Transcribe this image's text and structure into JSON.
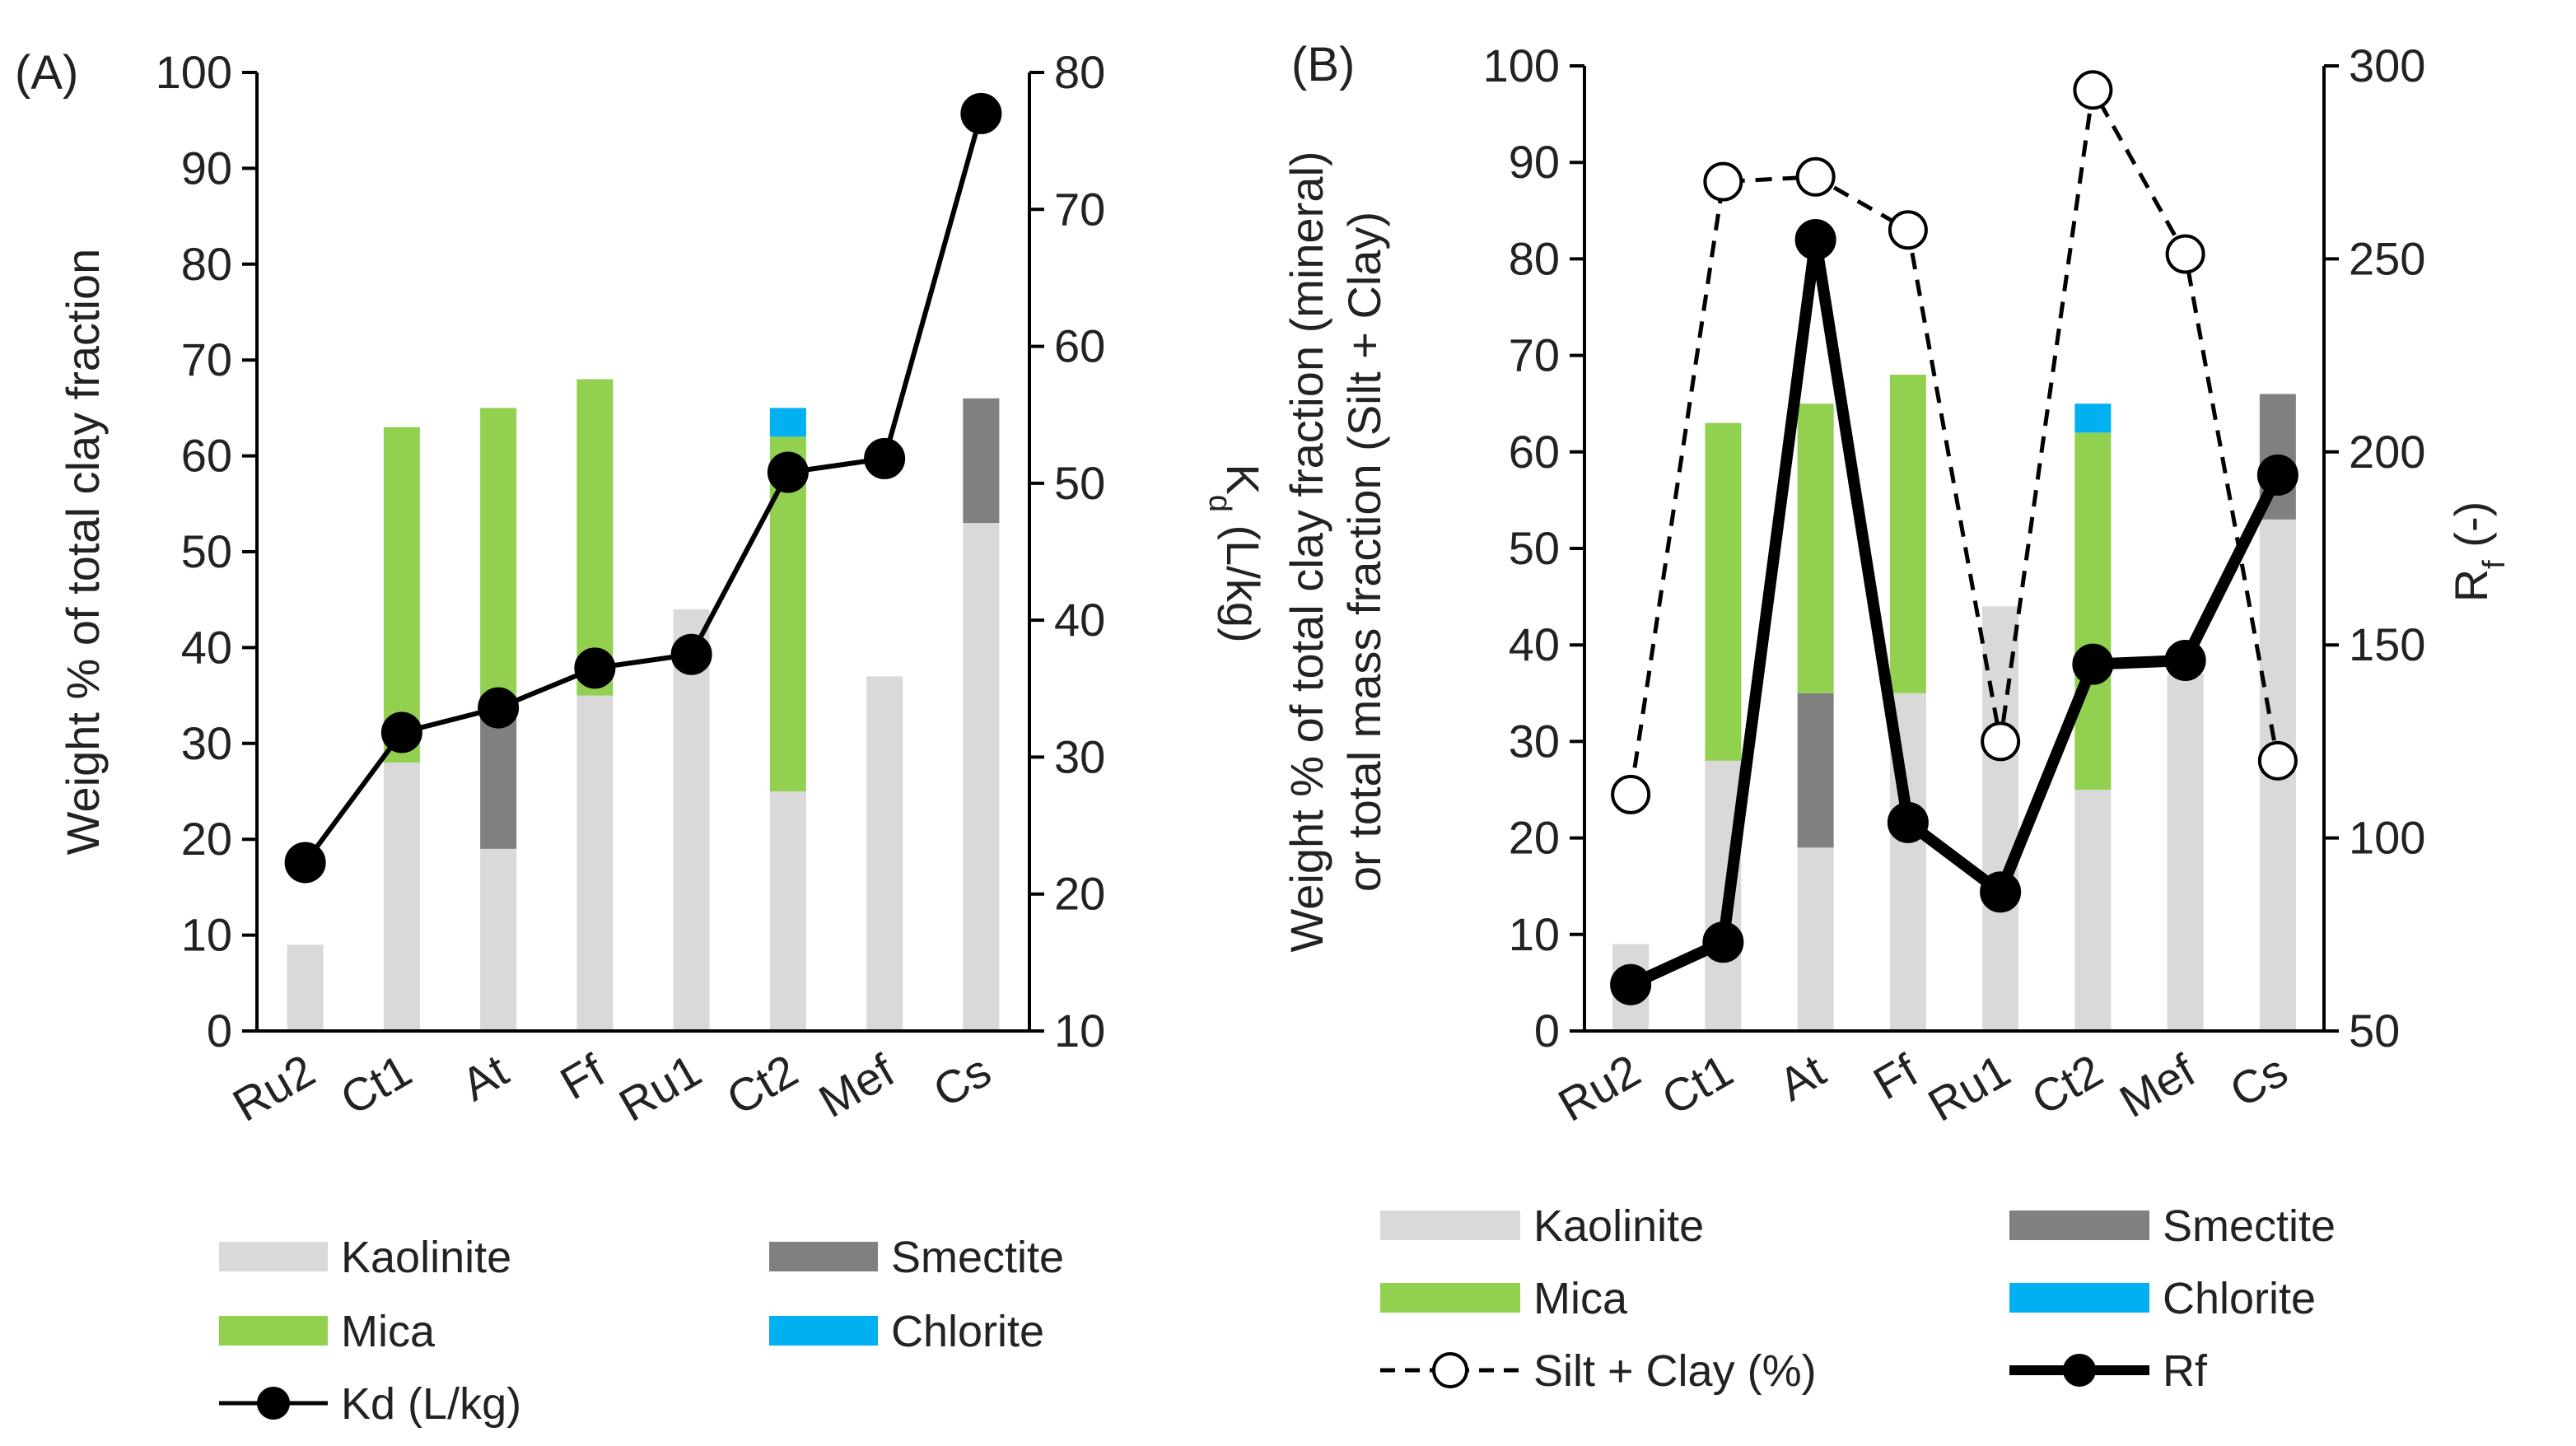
{
  "colors": {
    "kaolinite": "#d9d9d9",
    "smectite": "#808080",
    "mica": "#92d050",
    "chlorite": "#00b0f0",
    "line": "#000000"
  },
  "chart_data": [
    {
      "type": "bar",
      "panel_label": "(A)",
      "bar_mode": "stacked",
      "categories": [
        "Ru2",
        "Ct1",
        "At",
        "Ff",
        "Ru1",
        "Ct2",
        "Mef",
        "Cs"
      ],
      "series": [
        {
          "name": "Kaolinite",
          "key": "kaolinite",
          "values": [
            9,
            28,
            19,
            35,
            44,
            25,
            37,
            53
          ]
        },
        {
          "name": "Smectite",
          "key": "smectite",
          "values": [
            0,
            0,
            16,
            0,
            0,
            0,
            0,
            13
          ]
        },
        {
          "name": "Mica",
          "key": "mica",
          "values": [
            0,
            35,
            30,
            33,
            0,
            37,
            0,
            0
          ]
        },
        {
          "name": "Chlorite",
          "key": "chlorite",
          "values": [
            0,
            0,
            0,
            0,
            0,
            3,
            0,
            0
          ]
        }
      ],
      "line_series": [
        {
          "name": "Kd (L/kg)",
          "axis": "right",
          "marker": "filled-circle",
          "dash": "solid",
          "values": [
            22.3,
            31.8,
            33.6,
            36.5,
            37.5,
            50.8,
            51.8,
            77
          ]
        }
      ],
      "ylabel": "Weight % of total clay fraction",
      "ylim": [
        0,
        100
      ],
      "yticks": [
        0,
        10,
        20,
        30,
        40,
        50,
        60,
        70,
        80,
        90,
        100
      ],
      "y2label": "Kd (L/kg)",
      "y2label_main": "K",
      "y2label_sub": "d",
      "y2label_rest": " (L/kg)",
      "y2lim": [
        10,
        80
      ],
      "y2ticks": [
        10,
        20,
        30,
        40,
        50,
        60,
        70,
        80
      ],
      "grid": false,
      "legend_position": "bottom",
      "legend": [
        {
          "label": "Kaolinite",
          "key": "kaolinite",
          "kind": "bar"
        },
        {
          "label": "Smectite",
          "key": "smectite",
          "kind": "bar"
        },
        {
          "label": "Mica",
          "key": "mica",
          "kind": "bar"
        },
        {
          "label": "Chlorite",
          "key": "chlorite",
          "kind": "bar"
        },
        {
          "label": "Kd (L/kg)",
          "key": "line",
          "kind": "line-filled"
        }
      ]
    },
    {
      "type": "bar",
      "panel_label": "(B)",
      "bar_mode": "stacked",
      "categories": [
        "Ru2",
        "Ct1",
        "At",
        "Ff",
        "Ru1",
        "Ct2",
        "Mef",
        "Cs"
      ],
      "series": [
        {
          "name": "Kaolinite",
          "key": "kaolinite",
          "values": [
            9,
            28,
            19,
            35,
            44,
            25,
            37,
            53
          ]
        },
        {
          "name": "Smectite",
          "key": "smectite",
          "values": [
            0,
            0,
            16,
            0,
            0,
            0,
            0,
            13
          ]
        },
        {
          "name": "Mica",
          "key": "mica",
          "values": [
            0,
            35,
            30,
            33,
            0,
            37,
            0,
            0
          ]
        },
        {
          "name": "Chlorite",
          "key": "chlorite",
          "values": [
            0,
            0,
            0,
            0,
            0,
            3,
            0,
            0
          ]
        }
      ],
      "line_series": [
        {
          "name": "Silt + Clay (%)",
          "axis": "left",
          "marker": "open-circle",
          "dash": "dashed",
          "values": [
            24.5,
            88,
            88.5,
            83,
            30,
            97.5,
            80.5,
            28
          ]
        },
        {
          "name": "Rf",
          "axis": "right",
          "marker": "filled-circle",
          "dash": "solid",
          "values": [
            62,
            73,
            255,
            104,
            86,
            145,
            146,
            194
          ]
        }
      ],
      "ylabel_line1": "Weight % of total clay fraction (mineral)",
      "ylabel_line2": "or total mass fraction (Silt + Clay)",
      "ylim": [
        0,
        100
      ],
      "yticks": [
        0,
        10,
        20,
        30,
        40,
        50,
        60,
        70,
        80,
        90,
        100
      ],
      "y2label": "Rf (-)",
      "y2label_main": "R",
      "y2label_sub": "f",
      "y2label_rest": " (-)",
      "y2lim": [
        50,
        300
      ],
      "y2ticks": [
        50,
        100,
        150,
        200,
        250,
        300
      ],
      "grid": false,
      "legend_position": "bottom",
      "legend": [
        {
          "label": "Kaolinite",
          "key": "kaolinite",
          "kind": "bar"
        },
        {
          "label": "Smectite",
          "key": "smectite",
          "kind": "bar"
        },
        {
          "label": "Mica",
          "key": "mica",
          "kind": "bar"
        },
        {
          "label": "Chlorite",
          "key": "chlorite",
          "kind": "bar"
        },
        {
          "label": "Silt + Clay (%)",
          "key": "line",
          "kind": "line-open-dashed"
        },
        {
          "label": "Rf",
          "key": "line",
          "kind": "line-filled-thick"
        }
      ]
    }
  ]
}
